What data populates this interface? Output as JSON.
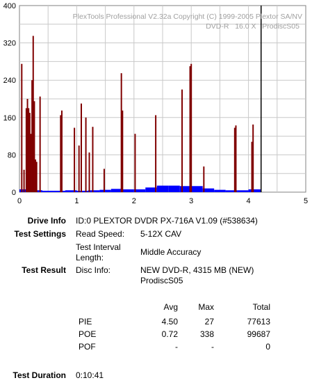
{
  "chart_data": {
    "type": "bar",
    "title": "PlexTools Professional V2.32a Copyright (C) 1999-2005 Plextor SA/NV",
    "subtitle": "DVD-R   16.0 X   ProdiscS05",
    "xlim": [
      0,
      5
    ],
    "ylim": [
      0,
      400
    ],
    "xticks": [
      "0",
      "1",
      "2",
      "3",
      "4",
      "5"
    ],
    "yticks": [
      "0",
      "80",
      "160",
      "240",
      "320",
      "400"
    ],
    "grid": true,
    "end_marker_x": 4.22,
    "series": [
      {
        "color": "#800000",
        "x": [
          0.04,
          0.08,
          0.12,
          0.14,
          0.16,
          0.18,
          0.2,
          0.22,
          0.24,
          0.26,
          0.28,
          0.3,
          0.36,
          0.72,
          0.74,
          0.96,
          1.04,
          1.08,
          1.16,
          1.22,
          1.28,
          1.48,
          1.78,
          1.8,
          2.02,
          2.38,
          2.84,
          2.98,
          3.0,
          3.22,
          3.76,
          3.78,
          4.06,
          4.08
        ],
        "values": [
          275,
          48,
          180,
          200,
          180,
          170,
          125,
          240,
          335,
          195,
          70,
          65,
          205,
          165,
          175,
          138,
          100,
          190,
          160,
          85,
          140,
          50,
          255,
          175,
          125,
          165,
          220,
          270,
          275,
          55,
          138,
          143,
          108,
          145
        ]
      },
      {
        "color": "#0000ff",
        "note": "",
        "x": [
          0.0,
          0.2,
          0.4,
          0.6,
          0.8,
          1.0,
          1.2,
          1.4,
          1.6,
          1.8,
          2.0,
          2.2,
          2.4,
          2.6,
          2.8,
          3.0,
          3.2,
          3.4,
          3.6,
          3.8,
          4.0,
          4.2
        ],
        "values": [
          6,
          4,
          3,
          3,
          4,
          3,
          4,
          5,
          7,
          6,
          6,
          10,
          14,
          14,
          13,
          13,
          8,
          5,
          4,
          4,
          6,
          6
        ]
      }
    ]
  },
  "info": {
    "drive_label": "Drive Info",
    "drive_value": "ID:0 PLEXTOR DVDR PX-716A V1.09 (#538634)",
    "settings_label": "Test Settings",
    "read_speed_label": "Read Speed:",
    "read_speed_value": "5-12X CAV",
    "interval_label": "Test Interval Length:",
    "interval_value": "Middle Accuracy",
    "result_label": "Test Result",
    "disc_info_label": "Disc Info:",
    "disc_info_value": "NEW DVD-R, 4315 MB (NEW) ProdiscS05",
    "duration_label": "Test Duration",
    "duration_value": "0:10:41"
  },
  "results_table": {
    "headers": [
      "",
      "Avg",
      "Max",
      "Total"
    ],
    "rows": [
      {
        "name": "PIE",
        "avg": "4.50",
        "max": "27",
        "total": "77613"
      },
      {
        "name": "POE",
        "avg": "0.72",
        "max": "338",
        "total": "99687"
      },
      {
        "name": "POF",
        "avg": "-",
        "max": "-",
        "total": "0"
      }
    ]
  }
}
